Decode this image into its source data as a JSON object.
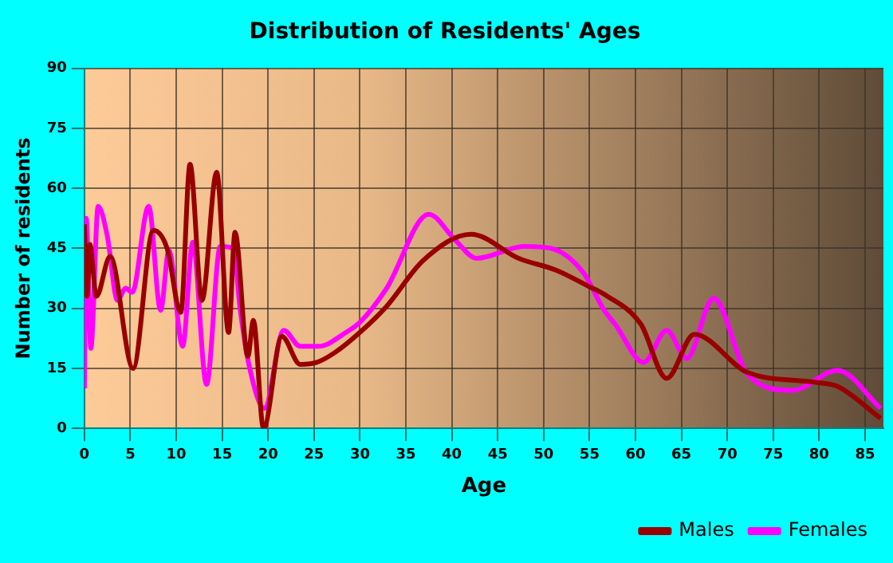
{
  "chart_data": {
    "type": "line",
    "title": "Distribution of Residents' Ages",
    "xlabel": "Age",
    "ylabel": "Number of residents",
    "series": [
      {
        "name": "Males",
        "color": "#990000",
        "x": [
          0,
          0.3,
          0.6,
          1.3,
          2.8,
          5.3,
          7.5,
          9,
          10.5,
          11.5,
          12.8,
          14.4,
          15.7,
          16.4,
          17.8,
          18.4,
          19.5,
          21.5,
          23.5,
          25.3,
          27.3,
          30,
          32.9,
          36.9,
          42.1,
          47.3,
          51.4,
          54.9,
          56.6,
          60.6,
          63.4,
          66.4,
          72.2,
          79.7,
          82,
          86.7
        ],
        "values": [
          51,
          33,
          46,
          33,
          43,
          15,
          49.5,
          45,
          29,
          66,
          32,
          64,
          24,
          49,
          18,
          27,
          0,
          23,
          16,
          16.5,
          19,
          24,
          30.5,
          42,
          48.5,
          42.5,
          39.5,
          35.5,
          33.5,
          26,
          12.5,
          23.5,
          14,
          11.5,
          10.5,
          2.5
        ]
      },
      {
        "name": "Females",
        "color": "#ff00ff",
        "x": [
          0,
          0.2,
          0.7,
          1.5,
          2.5,
          3.6,
          4.5,
          5.2,
          7,
          8.3,
          9.2,
          10.7,
          11.8,
          13.3,
          14.8,
          16.2,
          17,
          18,
          19.6,
          21.7,
          23.5,
          25.5,
          28.5,
          30,
          32.9,
          37.5,
          40.4,
          42.7,
          47.9,
          50.8,
          54.3,
          56.6,
          57.8,
          60.9,
          63.4,
          65.6,
          68.5,
          72.2,
          77.1,
          82,
          86.7
        ],
        "values": [
          10,
          52.5,
          20,
          55.5,
          48,
          32,
          35,
          34,
          55.5,
          29.5,
          44.5,
          20.5,
          46.5,
          11,
          45.5,
          45,
          29,
          15,
          5,
          24.5,
          20.5,
          20.5,
          24,
          26.5,
          35,
          53.5,
          47,
          42.5,
          45.5,
          45,
          39,
          29.5,
          26,
          16.5,
          24.5,
          17.5,
          32.5,
          13.5,
          9.5,
          14.5,
          5
        ]
      }
    ],
    "xlim": [
      0,
      87
    ],
    "xticks": [
      0,
      5,
      10,
      15,
      20,
      25,
      30,
      35,
      40,
      45,
      50,
      55,
      60,
      65,
      70,
      75,
      80,
      85
    ],
    "ylim": [
      0,
      90
    ],
    "yticks": [
      0,
      15,
      30,
      45,
      60,
      75,
      90
    ],
    "grid": true,
    "legend": "bottom right"
  }
}
